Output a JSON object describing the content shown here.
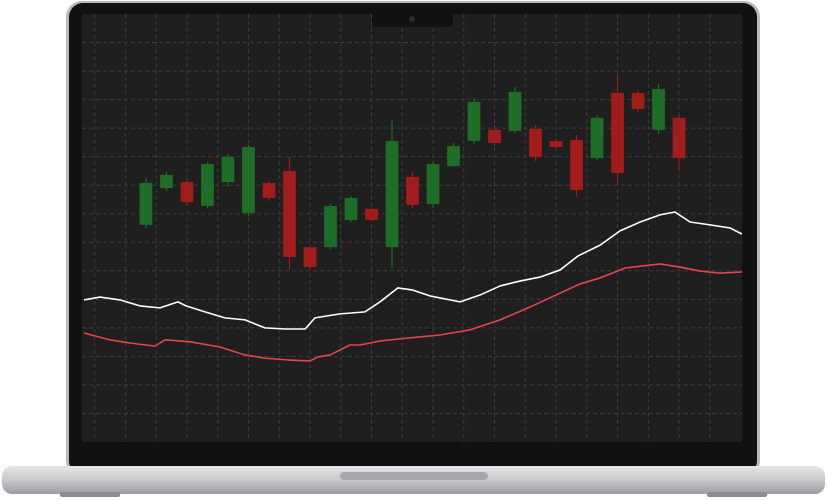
{
  "chart_data": {
    "type": "candlestick",
    "x": [
      1,
      2,
      3,
      4,
      5,
      6,
      7,
      8,
      9,
      10,
      11,
      12,
      13,
      14,
      15,
      16,
      17,
      18,
      19,
      20,
      21,
      22,
      23,
      24,
      25,
      26,
      27
    ],
    "open": [
      7.61,
      8.9,
      9.11,
      8.27,
      9.11,
      8.03,
      9.08,
      9.5,
      6.83,
      6.83,
      7.78,
      8.17,
      6.83,
      9.29,
      8.34,
      9.67,
      10.55,
      10.94,
      10.9,
      10.97,
      10.55,
      10.59,
      9.95,
      12.23,
      12.23,
      10.94,
      11.36
    ],
    "high": [
      9.25,
      9.46,
      9.22,
      9.81,
      10.1,
      10.41,
      9.15,
      9.99,
      6.9,
      8.34,
      8.62,
      8.2,
      11.29,
      9.46,
      9.85,
      10.48,
      12.06,
      11.1,
      12.44,
      11.1,
      10.62,
      10.76,
      11.43,
      12.86,
      12.34,
      12.55,
      11.43
    ],
    "low": [
      7.5,
      8.8,
      8.31,
      8.2,
      8.97,
      7.92,
      8.45,
      6.03,
      6.03,
      6.76,
      7.71,
      7.74,
      6.1,
      8.2,
      8.2,
      9.64,
      10.45,
      10.38,
      10.83,
      9.85,
      10.27,
      8.59,
      9.88,
      9.01,
      11.57,
      10.8,
      9.53
    ],
    "close": [
      9.08,
      9.36,
      8.41,
      9.74,
      9.99,
      10.34,
      8.55,
      6.48,
      6.13,
      8.27,
      8.55,
      7.78,
      10.55,
      8.31,
      9.74,
      10.37,
      11.92,
      10.48,
      12.27,
      9.99,
      10.34,
      8.83,
      11.36,
      9.43,
      11.67,
      12.37,
      9.95
    ],
    "up_color": "#1f6e28",
    "down_color": "#a31c1c",
    "lines": [
      {
        "color": "#ffffff",
        "x": [
          -2.02,
          -1.24,
          -0.27,
          0.71,
          1.68,
          2.56,
          2.95,
          3.88,
          4.85,
          5.83,
          6.8,
          7.78,
          8.76,
          9.24,
          10.46,
          11.68,
          12.41,
          13.29,
          13.98,
          14.85,
          16.32,
          17.29,
          18.27,
          19.24,
          20.22,
          21.2,
          22.07,
          23.15,
          24.12,
          25.1,
          26.07,
          26.8,
          27.54,
          28.51,
          29.49,
          30.07
        ],
        "values": [
          4.98,
          5.08,
          4.98,
          4.77,
          4.7,
          4.91,
          4.77,
          4.56,
          4.35,
          4.28,
          4.0,
          3.96,
          3.96,
          4.35,
          4.49,
          4.56,
          4.91,
          5.4,
          5.33,
          5.12,
          4.91,
          5.15,
          5.47,
          5.64,
          5.78,
          6.03,
          6.52,
          6.9,
          7.4,
          7.71,
          7.96,
          8.06,
          7.71,
          7.61,
          7.5,
          7.29
        ]
      },
      {
        "color": "#e0484a",
        "x": [
          -2.02,
          -0.76,
          0.22,
          1.44,
          1.93,
          3.15,
          4.61,
          5.83,
          6.8,
          8.02,
          9.0,
          9.39,
          9.98,
          10.95,
          11.44,
          12.41,
          13.88,
          15.34,
          16.8,
          18.27,
          19.73,
          21.2,
          22.17,
          23.15,
          24.37,
          26.07,
          27.05,
          28.02,
          29.0,
          30.07
        ],
        "values": [
          3.82,
          3.58,
          3.47,
          3.36,
          3.58,
          3.51,
          3.33,
          3.05,
          2.94,
          2.87,
          2.84,
          2.98,
          3.05,
          3.4,
          3.4,
          3.54,
          3.65,
          3.75,
          3.93,
          4.28,
          4.73,
          5.22,
          5.54,
          5.75,
          6.1,
          6.24,
          6.13,
          5.99,
          5.92,
          5.96
        ]
      }
    ],
    "xlim": [
      -2.12,
      30.07
    ],
    "ylim": [
      0,
      15
    ],
    "xticks": [
      -1.5,
      0,
      1.5,
      3,
      4.5,
      6,
      7.5,
      9,
      10.5,
      12,
      13.5,
      15,
      16.5,
      18,
      19.5,
      21,
      22.5,
      24,
      25.5,
      27,
      28.5
    ],
    "yticks": [
      1,
      2,
      3,
      4,
      5,
      6,
      7,
      8,
      9,
      10,
      11,
      12,
      13,
      14
    ],
    "grid": true
  }
}
